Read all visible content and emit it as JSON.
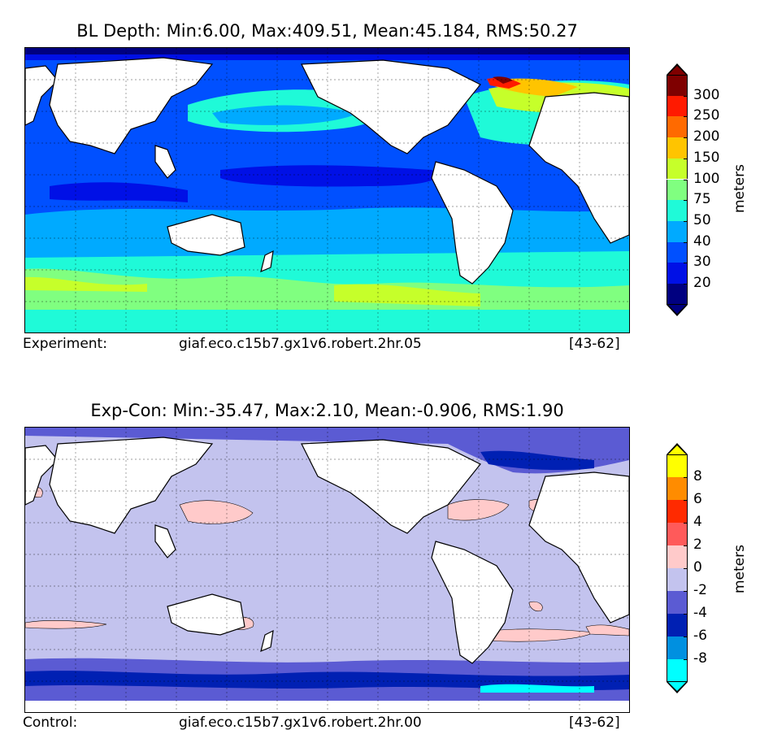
{
  "panels": [
    {
      "title": "BL Depth: Min:6.00, Max:409.51, Mean:45.184, RMS:50.27",
      "footer": {
        "label": "Experiment:",
        "run": "giaf.eco.c15b7.gx1v6.robert.2hr.05",
        "years": "[43-62]"
      },
      "colorbar": {
        "unit": "meters",
        "ticks": [
          "300",
          "250",
          "200",
          "150",
          "100",
          "75",
          "50",
          "40",
          "30",
          "20"
        ],
        "colors": [
          "#7f0000",
          "#ff1a00",
          "#ff6a00",
          "#ffc400",
          "#c6ff2a",
          "#80ff80",
          "#1ffad8",
          "#00aaff",
          "#0050ff",
          "#0010e6",
          "#000080"
        ],
        "over_color": "#7f0000",
        "under_color": "#000080"
      }
    },
    {
      "title": "Exp-Con: Min:-35.47, Max:2.10, Mean:-0.906, RMS:1.90",
      "footer": {
        "label": "Control:",
        "run": "giaf.eco.c15b7.gx1v6.robert.2hr.00",
        "years": "[43-62]"
      },
      "colorbar": {
        "unit": "meters",
        "ticks": [
          "8",
          "6",
          "4",
          "2",
          "0",
          "-2",
          "-4",
          "-6",
          "-8"
        ],
        "colors": [
          "#ffff00",
          "#ff8c00",
          "#ff2a00",
          "#ff5a5a",
          "#ffcaca",
          "#c3c3ee",
          "#5b5bd3",
          "#0020b3",
          "#0090e0",
          "#00ffff"
        ],
        "over_color": "#ffff00",
        "under_color": "#00ffff"
      }
    }
  ]
}
